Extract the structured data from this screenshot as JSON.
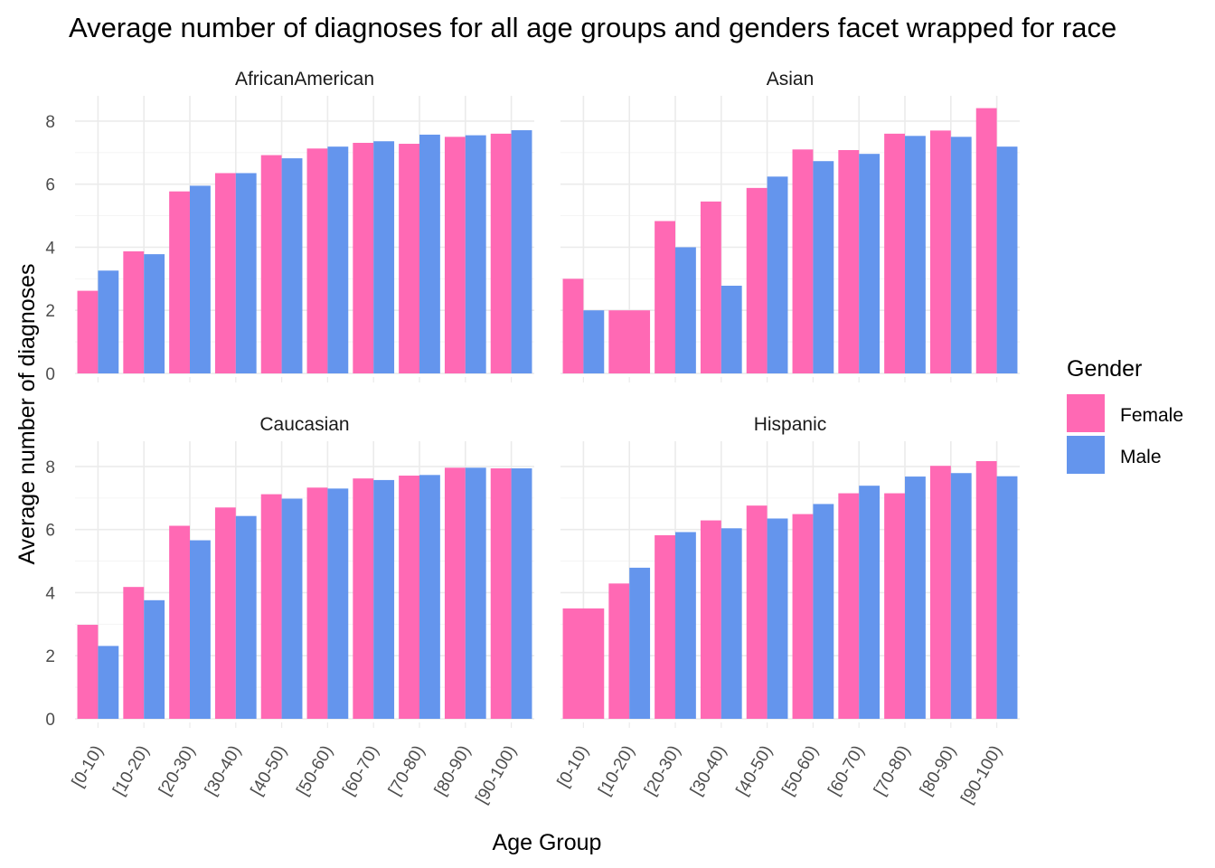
{
  "chart_data": {
    "type": "bar",
    "title": "Average number of diagnoses for all age groups and genders facet wrapped for race",
    "xlabel": "Age Group",
    "ylabel": "Average number of diagnoses",
    "ylim": [
      0,
      8.8
    ],
    "yticks": [
      0,
      2,
      4,
      6,
      8
    ],
    "categories": [
      "[0-10)",
      "[10-20)",
      "[20-30)",
      "[30-40)",
      "[40-50)",
      "[50-60)",
      "[60-70)",
      "[70-80)",
      "[80-90)",
      "[90-100)"
    ],
    "legend": {
      "title": "Gender",
      "position": "right",
      "items": [
        {
          "name": "Female",
          "color": "#ff69b4"
        },
        {
          "name": "Male",
          "color": "#6495ed"
        }
      ]
    },
    "facets": [
      {
        "name": "AfricanAmerican",
        "series": [
          {
            "name": "Female",
            "values": [
              2.62,
              3.87,
              5.77,
              6.35,
              6.92,
              7.13,
              7.31,
              7.28,
              7.5,
              7.6
            ]
          },
          {
            "name": "Male",
            "values": [
              3.26,
              3.78,
              5.95,
              6.35,
              6.82,
              7.19,
              7.36,
              7.57,
              7.55,
              7.71
            ]
          }
        ]
      },
      {
        "name": "Asian",
        "series": [
          {
            "name": "Female",
            "values": [
              3.0,
              2.0,
              4.83,
              5.45,
              5.88,
              7.1,
              7.08,
              7.6,
              7.7,
              8.41
            ]
          },
          {
            "name": "Male",
            "values": [
              2.0,
              null,
              4.0,
              2.78,
              6.24,
              6.73,
              6.96,
              7.53,
              7.5,
              7.19
            ]
          }
        ]
      },
      {
        "name": "Caucasian",
        "series": [
          {
            "name": "Female",
            "values": [
              2.98,
              4.18,
              6.12,
              6.7,
              7.12,
              7.33,
              7.62,
              7.71,
              7.96,
              7.94
            ]
          },
          {
            "name": "Male",
            "values": [
              2.31,
              3.76,
              5.66,
              6.43,
              6.98,
              7.3,
              7.57,
              7.73,
              7.96,
              7.94
            ]
          }
        ]
      },
      {
        "name": "Hispanic",
        "series": [
          {
            "name": "Female",
            "values": [
              3.5,
              4.29,
              5.82,
              6.29,
              6.76,
              6.49,
              7.15,
              7.15,
              8.02,
              8.17
            ]
          },
          {
            "name": "Male",
            "values": [
              null,
              4.79,
              5.92,
              6.04,
              6.35,
              6.81,
              7.39,
              7.68,
              7.79,
              7.69
            ]
          }
        ]
      }
    ]
  }
}
